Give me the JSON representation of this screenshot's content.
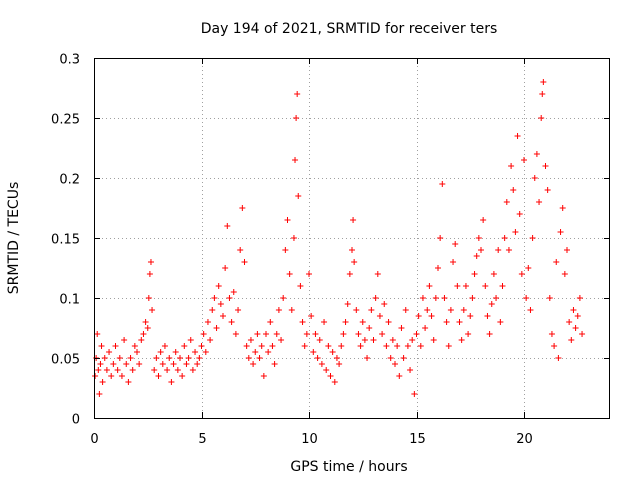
{
  "chart_data": {
    "type": "scatter",
    "title": "Day 194 of 2021, SRMTID for receiver ters",
    "xlabel": "GPS time / hours",
    "ylabel": "SRMTID / TECUs",
    "xlim": [
      0,
      24
    ],
    "ylim": [
      0,
      0.3
    ],
    "x_ticks": [
      0,
      5,
      10,
      15,
      20
    ],
    "x_tick_labels": [
      "0",
      "5",
      "10",
      "15",
      "20"
    ],
    "y_ticks": [
      0,
      0.05,
      0.1,
      0.15,
      0.2,
      0.25,
      0.3
    ],
    "y_tick_labels": [
      "0",
      "0.05",
      "0.1",
      "0.15",
      "0.2",
      "0.25",
      "0.3"
    ],
    "grid": true,
    "legend": "none",
    "marker": "plus",
    "color": "#ff0000",
    "series": [
      {
        "points": [
          [
            0.05,
            0.035
          ],
          [
            0.1,
            0.05
          ],
          [
            0.15,
            0.07
          ],
          [
            0.2,
            0.04
          ],
          [
            0.25,
            0.02
          ],
          [
            0.3,
            0.045
          ],
          [
            0.35,
            0.06
          ],
          [
            0.4,
            0.03
          ],
          [
            0.5,
            0.05
          ],
          [
            0.6,
            0.04
          ],
          [
            0.7,
            0.055
          ],
          [
            0.8,
            0.035
          ],
          [
            0.9,
            0.045
          ],
          [
            1.0,
            0.06
          ],
          [
            1.1,
            0.04
          ],
          [
            1.2,
            0.05
          ],
          [
            1.3,
            0.035
          ],
          [
            1.4,
            0.065
          ],
          [
            1.5,
            0.045
          ],
          [
            1.6,
            0.03
          ],
          [
            1.7,
            0.05
          ],
          [
            1.8,
            0.04
          ],
          [
            1.9,
            0.06
          ],
          [
            2.0,
            0.055
          ],
          [
            2.1,
            0.045
          ],
          [
            2.2,
            0.065
          ],
          [
            2.3,
            0.07
          ],
          [
            2.4,
            0.08
          ],
          [
            2.5,
            0.075
          ],
          [
            2.55,
            0.1
          ],
          [
            2.6,
            0.12
          ],
          [
            2.65,
            0.13
          ],
          [
            2.7,
            0.09
          ],
          [
            2.8,
            0.04
          ],
          [
            2.9,
            0.05
          ],
          [
            3.0,
            0.035
          ],
          [
            3.1,
            0.055
          ],
          [
            3.2,
            0.045
          ],
          [
            3.3,
            0.06
          ],
          [
            3.4,
            0.04
          ],
          [
            3.5,
            0.05
          ],
          [
            3.6,
            0.03
          ],
          [
            3.7,
            0.045
          ],
          [
            3.8,
            0.055
          ],
          [
            3.9,
            0.04
          ],
          [
            4.0,
            0.05
          ],
          [
            4.1,
            0.035
          ],
          [
            4.2,
            0.06
          ],
          [
            4.3,
            0.045
          ],
          [
            4.4,
            0.05
          ],
          [
            4.5,
            0.065
          ],
          [
            4.6,
            0.04
          ],
          [
            4.7,
            0.055
          ],
          [
            4.8,
            0.045
          ],
          [
            4.9,
            0.05
          ],
          [
            5.0,
            0.06
          ],
          [
            5.1,
            0.07
          ],
          [
            5.2,
            0.055
          ],
          [
            5.3,
            0.08
          ],
          [
            5.4,
            0.065
          ],
          [
            5.5,
            0.09
          ],
          [
            5.6,
            0.1
          ],
          [
            5.7,
            0.075
          ],
          [
            5.8,
            0.11
          ],
          [
            5.9,
            0.095
          ],
          [
            6.0,
            0.085
          ],
          [
            6.1,
            0.125
          ],
          [
            6.2,
            0.16
          ],
          [
            6.3,
            0.1
          ],
          [
            6.4,
            0.08
          ],
          [
            6.5,
            0.105
          ],
          [
            6.6,
            0.07
          ],
          [
            6.7,
            0.09
          ],
          [
            6.8,
            0.14
          ],
          [
            6.9,
            0.175
          ],
          [
            7.0,
            0.13
          ],
          [
            7.1,
            0.06
          ],
          [
            7.2,
            0.05
          ],
          [
            7.3,
            0.065
          ],
          [
            7.4,
            0.045
          ],
          [
            7.5,
            0.055
          ],
          [
            7.6,
            0.07
          ],
          [
            7.7,
            0.05
          ],
          [
            7.8,
            0.06
          ],
          [
            7.9,
            0.035
          ],
          [
            8.0,
            0.07
          ],
          [
            8.1,
            0.055
          ],
          [
            8.2,
            0.08
          ],
          [
            8.3,
            0.06
          ],
          [
            8.4,
            0.045
          ],
          [
            8.5,
            0.07
          ],
          [
            8.6,
            0.09
          ],
          [
            8.7,
            0.065
          ],
          [
            8.8,
            0.1
          ],
          [
            8.9,
            0.14
          ],
          [
            9.0,
            0.165
          ],
          [
            9.1,
            0.12
          ],
          [
            9.2,
            0.09
          ],
          [
            9.3,
            0.15
          ],
          [
            9.35,
            0.215
          ],
          [
            9.4,
            0.25
          ],
          [
            9.45,
            0.27
          ],
          [
            9.5,
            0.185
          ],
          [
            9.6,
            0.11
          ],
          [
            9.7,
            0.08
          ],
          [
            9.8,
            0.06
          ],
          [
            9.9,
            0.07
          ],
          [
            10.0,
            0.12
          ],
          [
            10.1,
            0.085
          ],
          [
            10.2,
            0.055
          ],
          [
            10.3,
            0.07
          ],
          [
            10.4,
            0.05
          ],
          [
            10.5,
            0.065
          ],
          [
            10.6,
            0.045
          ],
          [
            10.7,
            0.08
          ],
          [
            10.8,
            0.04
          ],
          [
            10.9,
            0.06
          ],
          [
            11.0,
            0.035
          ],
          [
            11.1,
            0.055
          ],
          [
            11.2,
            0.03
          ],
          [
            11.3,
            0.05
          ],
          [
            11.4,
            0.045
          ],
          [
            11.5,
            0.06
          ],
          [
            11.6,
            0.07
          ],
          [
            11.7,
            0.08
          ],
          [
            11.8,
            0.095
          ],
          [
            11.9,
            0.12
          ],
          [
            12.0,
            0.14
          ],
          [
            12.05,
            0.165
          ],
          [
            12.1,
            0.13
          ],
          [
            12.2,
            0.09
          ],
          [
            12.3,
            0.07
          ],
          [
            12.4,
            0.06
          ],
          [
            12.5,
            0.08
          ],
          [
            12.6,
            0.065
          ],
          [
            12.7,
            0.05
          ],
          [
            12.8,
            0.075
          ],
          [
            12.9,
            0.09
          ],
          [
            13.0,
            0.065
          ],
          [
            13.1,
            0.1
          ],
          [
            13.2,
            0.12
          ],
          [
            13.3,
            0.085
          ],
          [
            13.4,
            0.07
          ],
          [
            13.5,
            0.095
          ],
          [
            13.6,
            0.06
          ],
          [
            13.7,
            0.08
          ],
          [
            13.8,
            0.05
          ],
          [
            13.9,
            0.065
          ],
          [
            14.0,
            0.045
          ],
          [
            14.1,
            0.06
          ],
          [
            14.2,
            0.035
          ],
          [
            14.3,
            0.075
          ],
          [
            14.4,
            0.05
          ],
          [
            14.5,
            0.09
          ],
          [
            14.6,
            0.06
          ],
          [
            14.7,
            0.04
          ],
          [
            14.8,
            0.065
          ],
          [
            14.9,
            0.02
          ],
          [
            15.0,
            0.07
          ],
          [
            15.1,
            0.085
          ],
          [
            15.2,
            0.06
          ],
          [
            15.3,
            0.1
          ],
          [
            15.4,
            0.075
          ],
          [
            15.5,
            0.09
          ],
          [
            15.6,
            0.11
          ],
          [
            15.7,
            0.085
          ],
          [
            15.8,
            0.065
          ],
          [
            15.9,
            0.1
          ],
          [
            16.0,
            0.125
          ],
          [
            16.1,
            0.15
          ],
          [
            16.2,
            0.195
          ],
          [
            16.3,
            0.1
          ],
          [
            16.4,
            0.08
          ],
          [
            16.5,
            0.06
          ],
          [
            16.6,
            0.09
          ],
          [
            16.7,
            0.13
          ],
          [
            16.8,
            0.145
          ],
          [
            16.9,
            0.11
          ],
          [
            17.0,
            0.08
          ],
          [
            17.1,
            0.065
          ],
          [
            17.2,
            0.09
          ],
          [
            17.3,
            0.11
          ],
          [
            17.4,
            0.07
          ],
          [
            17.5,
            0.085
          ],
          [
            17.6,
            0.1
          ],
          [
            17.7,
            0.12
          ],
          [
            17.8,
            0.135
          ],
          [
            17.9,
            0.15
          ],
          [
            18.0,
            0.14
          ],
          [
            18.1,
            0.165
          ],
          [
            18.2,
            0.11
          ],
          [
            18.3,
            0.085
          ],
          [
            18.4,
            0.07
          ],
          [
            18.5,
            0.095
          ],
          [
            18.6,
            0.12
          ],
          [
            18.7,
            0.1
          ],
          [
            18.8,
            0.14
          ],
          [
            18.9,
            0.08
          ],
          [
            19.0,
            0.11
          ],
          [
            19.1,
            0.15
          ],
          [
            19.2,
            0.18
          ],
          [
            19.3,
            0.14
          ],
          [
            19.4,
            0.21
          ],
          [
            19.5,
            0.19
          ],
          [
            19.6,
            0.155
          ],
          [
            19.7,
            0.235
          ],
          [
            19.8,
            0.17
          ],
          [
            19.9,
            0.12
          ],
          [
            20.0,
            0.215
          ],
          [
            20.1,
            0.1
          ],
          [
            20.2,
            0.125
          ],
          [
            20.3,
            0.09
          ],
          [
            20.4,
            0.15
          ],
          [
            20.5,
            0.2
          ],
          [
            20.6,
            0.22
          ],
          [
            20.7,
            0.18
          ],
          [
            20.8,
            0.25
          ],
          [
            20.85,
            0.27
          ],
          [
            20.9,
            0.28
          ],
          [
            21.0,
            0.21
          ],
          [
            21.1,
            0.19
          ],
          [
            21.2,
            0.1
          ],
          [
            21.3,
            0.07
          ],
          [
            21.4,
            0.06
          ],
          [
            21.5,
            0.13
          ],
          [
            21.6,
            0.05
          ],
          [
            21.7,
            0.155
          ],
          [
            21.8,
            0.175
          ],
          [
            21.9,
            0.12
          ],
          [
            22.0,
            0.14
          ],
          [
            22.1,
            0.08
          ],
          [
            22.2,
            0.065
          ],
          [
            22.3,
            0.09
          ],
          [
            22.4,
            0.075
          ],
          [
            22.5,
            0.085
          ],
          [
            22.6,
            0.1
          ],
          [
            22.7,
            0.07
          ]
        ]
      }
    ]
  }
}
